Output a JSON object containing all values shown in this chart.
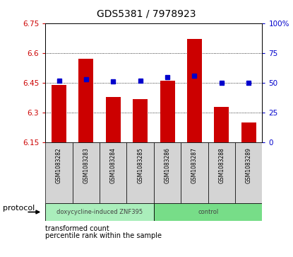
{
  "title": "GDS5381 / 7978923",
  "samples": [
    "GSM1083282",
    "GSM1083283",
    "GSM1083284",
    "GSM1083285",
    "GSM1083286",
    "GSM1083287",
    "GSM1083288",
    "GSM1083289"
  ],
  "bar_values": [
    6.44,
    6.57,
    6.38,
    6.37,
    6.46,
    6.67,
    6.33,
    6.25
  ],
  "percentile_values": [
    52,
    53,
    51,
    52,
    55,
    56,
    50,
    50
  ],
  "bar_bottom": 6.15,
  "ylim_left": [
    6.15,
    6.75
  ],
  "ylim_right": [
    0,
    100
  ],
  "yticks_left": [
    6.15,
    6.3,
    6.45,
    6.6,
    6.75
  ],
  "yticks_right": [
    0,
    25,
    50,
    75,
    100
  ],
  "ytick_labels_left": [
    "6.15",
    "6.3",
    "6.45",
    "6.6",
    "6.75"
  ],
  "ytick_labels_right": [
    "0",
    "25",
    "50",
    "75",
    "100%"
  ],
  "bar_color": "#cc0000",
  "percentile_color": "#0000cc",
  "protocol_groups": [
    {
      "label": "doxycycline-induced ZNF395",
      "start": 0,
      "end": 4,
      "color": "#aaeebb"
    },
    {
      "label": "control",
      "start": 4,
      "end": 8,
      "color": "#77dd88"
    }
  ],
  "protocol_label": "protocol",
  "legend_bar_label": "transformed count",
  "legend_pct_label": "percentile rank within the sample",
  "bar_width": 0.55,
  "tick_label_color_left": "#cc0000",
  "tick_label_color_right": "#0000cc",
  "sample_box_color": "#d4d4d4",
  "title_fontsize": 10,
  "axis_fontsize": 7.5,
  "sample_fontsize": 5.5,
  "proto_fontsize": 6,
  "legend_fontsize": 7
}
